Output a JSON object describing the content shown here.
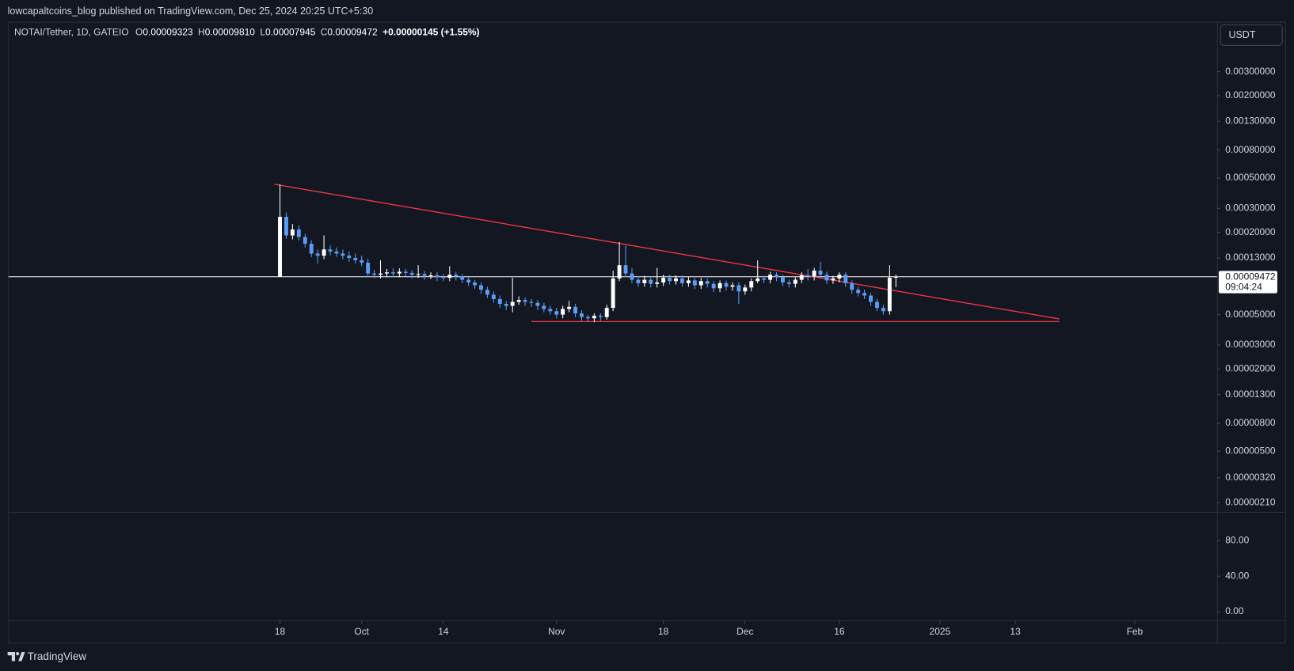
{
  "header": {
    "attribution": "lowcapaltcoins_blog published on TradingView.com, Dec 25, 2024 20:25 UTC+5:30"
  },
  "legend": {
    "symbol": "NOTAI/Tether, 1D, GATEIO",
    "o_label": "O",
    "o": "0.00009323",
    "h_label": "H",
    "h": "0.00009810",
    "l_label": "L",
    "l": "0.00007945",
    "c_label": "C",
    "c": "0.00009472",
    "change": "+0.00000145 (+1.55%)"
  },
  "currency_button": "USDT",
  "footer": {
    "brand": "TradingView"
  },
  "chart_data": [
    {
      "type": "candlestick",
      "log_scale": true,
      "grid": false,
      "up_color": "#ffffff",
      "down_color": "#5b9cf6",
      "xlim": [
        -43.2,
        149.1
      ],
      "xticks": [
        {
          "value": 0,
          "label": "18"
        },
        {
          "value": 13,
          "label": "Oct"
        },
        {
          "value": 26,
          "label": "14"
        },
        {
          "value": 44,
          "label": "Nov"
        },
        {
          "value": 61,
          "label": "18"
        },
        {
          "value": 74,
          "label": "Dec"
        },
        {
          "value": 89,
          "label": "16"
        },
        {
          "value": 105,
          "label": "2025"
        },
        {
          "value": 117,
          "label": "13"
        },
        {
          "value": 136,
          "label": "Feb"
        }
      ],
      "ylim": [
        1.8e-06,
        0.0069
      ],
      "yticks": [
        {
          "value": 0.003,
          "label": "0.00300000"
        },
        {
          "value": 0.002,
          "label": "0.00200000"
        },
        {
          "value": 0.0013,
          "label": "0.00130000"
        },
        {
          "value": 0.0008,
          "label": "0.00080000"
        },
        {
          "value": 0.0005,
          "label": "0.00050000"
        },
        {
          "value": 0.0003,
          "label": "0.00030000"
        },
        {
          "value": 0.0002,
          "label": "0.00020000"
        },
        {
          "value": 0.00013,
          "label": "0.00013000"
        },
        {
          "value": 5e-05,
          "label": "0.00005000"
        },
        {
          "value": 3e-05,
          "label": "0.00003000"
        },
        {
          "value": 2e-05,
          "label": "0.00002000"
        },
        {
          "value": 1.3e-05,
          "label": "0.00001300"
        },
        {
          "value": 8e-06,
          "label": "0.00000800"
        },
        {
          "value": 5e-06,
          "label": "0.00000500"
        },
        {
          "value": 3.2e-06,
          "label": "0.00000320"
        },
        {
          "value": 2.1e-06,
          "label": "0.00000210"
        }
      ],
      "open": [
        9.52e-05,
        0.00026,
        0.00019,
        0.00021,
        0.000185,
        0.000165,
        0.00014,
        0.000135,
        0.00015,
        0.000145,
        0.00014,
        0.000135,
        0.00013,
        0.000125,
        0.00012,
        0.0001,
        9.8e-05,
        0.0001,
        0.000102,
        0.0001,
        0.000103,
        0.000101,
        9.8e-05,
        9.9e-05,
        9.6e-05,
        9.7e-05,
        9.4e-05,
        9.3e-05,
        9.8e-05,
        9.5e-05,
        9e-05,
        8.6e-05,
        8.2e-05,
        7.6e-05,
        7e-05,
        6.5e-05,
        6e-05,
        5.8e-05,
        6.2e-05,
        6.4e-05,
        6.2e-05,
        6.1e-05,
        5.8e-05,
        5.5e-05,
        5.3e-05,
        5e-05,
        5.5e-05,
        5.7e-05,
        5.1e-05,
        4.8e-05,
        4.7e-05,
        4.9e-05,
        4.8e-05,
        5.6e-05,
        9.2e-05,
        0.000115,
        0.0001,
        9e-05,
        8.5e-05,
        9e-05,
        8.4e-05,
        8.6e-05,
        9.3e-05,
        8.8e-05,
        9.2e-05,
        8.5e-05,
        8.9e-05,
        8.2e-05,
        8.8e-05,
        8.4e-05,
        7.8e-05,
        8.5e-05,
        8e-05,
        8.2e-05,
        7.4e-05,
        7.9e-05,
        8.8e-05,
        9.2e-05,
        9e-05,
        9.8e-05,
        9.4e-05,
        8.6e-05,
        8.4e-05,
        9e-05,
        9.7e-05,
        9.5e-05,
        0.000105,
        9.8e-05,
        8.9e-05,
        9.2e-05,
        9.8e-05,
        8.5e-05,
        7.6e-05,
        7.2e-05,
        6.9e-05,
        6.2e-05,
        5.6e-05,
        5.3e-05,
        9.323e-05
      ],
      "high": [
        0.00045,
        0.00028,
        0.00023,
        0.000225,
        0.000195,
        0.000175,
        0.00015,
        0.00019,
        0.00016,
        0.000155,
        0.00015,
        0.000145,
        0.00014,
        0.000135,
        0.000128,
        0.000106,
        0.000125,
        0.000108,
        0.000109,
        0.000109,
        0.000108,
        0.000106,
        0.000115,
        0.000104,
        0.000102,
        0.000102,
        9.9e-05,
        0.000113,
        0.000103,
        9.9e-05,
        9.4e-05,
        9e-05,
        8.6e-05,
        8e-05,
        7.4e-05,
        6.9e-05,
        6.3e-05,
        9.3e-05,
        6.8e-05,
        6.7e-05,
        6.5e-05,
        6.4e-05,
        6.1e-05,
        5.8e-05,
        5.6e-05,
        5.8e-05,
        6.3e-05,
        6e-05,
        5.4e-05,
        5e-05,
        5.1e-05,
        5.1e-05,
        5.9e-05,
        0.000105,
        0.00017,
        0.00016,
        0.00011,
        9.6e-05,
        9.6e-05,
        9.5e-05,
        0.00011,
        9.8e-05,
        9.8e-05,
        9.7e-05,
        9.7e-05,
        9.4e-05,
        9.3e-05,
        9.3e-05,
        9.2e-05,
        8.8e-05,
        8.9e-05,
        8.9e-05,
        8.6e-05,
        8.6e-05,
        8.3e-05,
        9.2e-05,
        0.000125,
        9.6e-05,
        0.000103,
        0.000102,
        9.8e-05,
        9e-05,
        9.4e-05,
        0.000102,
        0.000108,
        0.00011,
        0.000122,
        0.000103,
        9.6e-05,
        0.000102,
        0.000102,
        8.9e-05,
        8e-05,
        7.6e-05,
        7.2e-05,
        6.5e-05,
        5.9e-05,
        0.000115,
        9.81e-05
      ],
      "low": [
        9.52e-05,
        0.00018,
        0.000178,
        0.000174,
        0.000155,
        0.000132,
        0.000118,
        0.000127,
        0.000136,
        0.000132,
        0.000127,
        0.000122,
        0.000118,
        0.000113,
        9.4e-05,
        9.2e-05,
        9.2e-05,
        9.4e-05,
        9.4e-05,
        9.4e-05,
        9.5e-05,
        9.2e-05,
        9.3e-05,
        9e-05,
        9.1e-05,
        8.8e-05,
        8.8e-05,
        8.8e-05,
        8.9e-05,
        8.5e-05,
        8.1e-05,
        7.7e-05,
        7.1e-05,
        6.6e-05,
        6.1e-05,
        5.6e-05,
        5.4e-05,
        5.2e-05,
        5.9e-05,
        5.8e-05,
        5.7e-05,
        5.4e-05,
        5.2e-05,
        5e-05,
        4.7e-05,
        4.7e-05,
        5.2e-05,
        4.8e-05,
        4.5e-05,
        4.4e-05,
        4.4e-05,
        4.5e-05,
        4.6e-05,
        5.3e-05,
        8.8e-05,
        9.4e-05,
        8.5e-05,
        8e-05,
        8e-05,
        7.9e-05,
        7.9e-05,
        8.1e-05,
        8.3e-05,
        8.3e-05,
        8e-05,
        8e-05,
        7.7e-05,
        7.7e-05,
        7.9e-05,
        7.3e-05,
        7.3e-05,
        7.5e-05,
        7.5e-05,
        6e-05,
        7e-05,
        7.4e-05,
        8.5e-05,
        8.5e-05,
        8.5e-05,
        8.8e-05,
        8.1e-05,
        7.9e-05,
        7.9e-05,
        8.5e-05,
        8.9e-05,
        8.9e-05,
        9.2e-05,
        8.4e-05,
        8.4e-05,
        8.6e-05,
        8e-05,
        7.1e-05,
        6.8e-05,
        6.5e-05,
        5.8e-05,
        5.3e-05,
        5e-05,
        5e-05,
        7.945e-05
      ],
      "close": [
        0.00026,
        0.00019,
        0.00021,
        0.000185,
        0.000165,
        0.00014,
        0.000135,
        0.00015,
        0.000145,
        0.00014,
        0.000135,
        0.00013,
        0.000125,
        0.00012,
        0.0001,
        9.8e-05,
        0.0001,
        0.000102,
        0.0001,
        0.000103,
        0.000101,
        9.8e-05,
        9.9e-05,
        9.6e-05,
        9.7e-05,
        9.4e-05,
        9.3e-05,
        9.8e-05,
        9.5e-05,
        9e-05,
        8.6e-05,
        8.2e-05,
        7.6e-05,
        7e-05,
        6.5e-05,
        6e-05,
        5.8e-05,
        6.2e-05,
        6.4e-05,
        6.2e-05,
        6.1e-05,
        5.8e-05,
        5.5e-05,
        5.3e-05,
        5e-05,
        5.5e-05,
        5.7e-05,
        5.1e-05,
        4.8e-05,
        4.7e-05,
        4.9e-05,
        4.8e-05,
        5.6e-05,
        9.2e-05,
        0.000115,
        0.0001,
        9e-05,
        8.5e-05,
        9e-05,
        8.4e-05,
        8.6e-05,
        9.3e-05,
        8.8e-05,
        9.2e-05,
        8.5e-05,
        8.9e-05,
        8.2e-05,
        8.8e-05,
        8.4e-05,
        7.8e-05,
        8.5e-05,
        8e-05,
        8.2e-05,
        7.4e-05,
        7.9e-05,
        8.8e-05,
        9.2e-05,
        9e-05,
        9.8e-05,
        9.4e-05,
        8.6e-05,
        8.4e-05,
        9e-05,
        9.7e-05,
        9.5e-05,
        0.000105,
        9.8e-05,
        8.9e-05,
        9.2e-05,
        9.8e-05,
        8.5e-05,
        7.6e-05,
        7.2e-05,
        6.9e-05,
        6.2e-05,
        5.6e-05,
        5.3e-05,
        9.323e-05,
        9.472e-05
      ],
      "last_price": {
        "value": 9.472e-05,
        "label": "0.00009472"
      },
      "countdown": "09:04:24",
      "trendline_color": "#f23645",
      "trendlines": [
        {
          "x": [
            -0.9,
            124
          ],
          "y": [
            0.00045,
            4.65e-05
          ]
        },
        {
          "x": [
            40,
            124
          ],
          "y": [
            4.45e-05,
            4.45e-05
          ]
        }
      ]
    },
    {
      "type": "indicator",
      "ylim": [
        -9.3,
        111.6
      ],
      "yticks": [
        {
          "value": 80,
          "label": "80.00"
        },
        {
          "value": 40,
          "label": "40.00"
        },
        {
          "value": 0,
          "label": "0.00"
        }
      ]
    }
  ]
}
